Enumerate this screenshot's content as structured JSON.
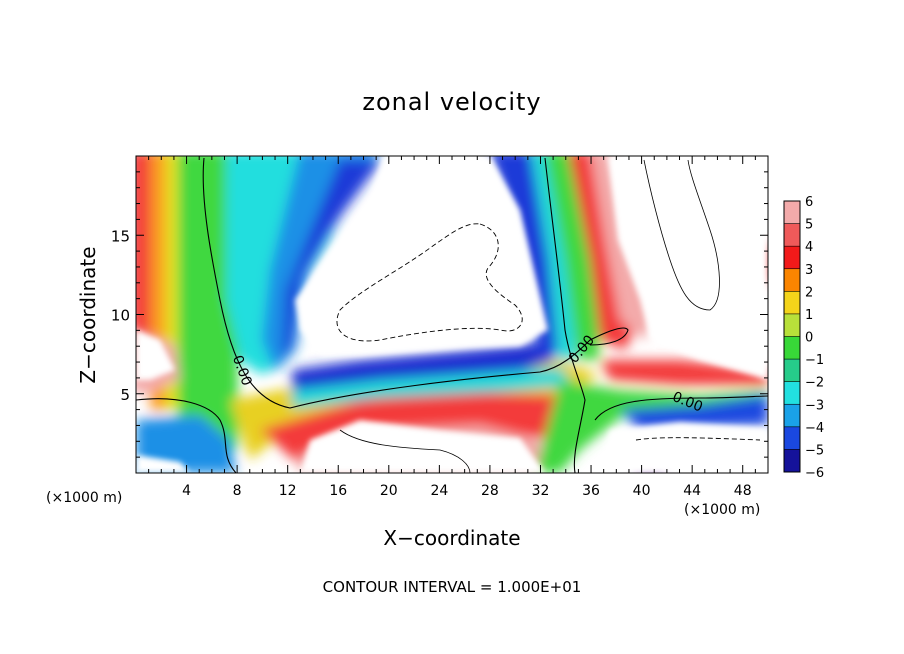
{
  "chart_data": {
    "type": "heatmap",
    "title": "zonal velocity",
    "xlabel": "X−coordinate",
    "ylabel": "Z−coordinate",
    "x_unit": "(×1000 m)",
    "xlim": [
      0,
      50
    ],
    "ylim": [
      0,
      20
    ],
    "x_ticks": [
      4,
      8,
      12,
      16,
      20,
      24,
      28,
      32,
      36,
      40,
      44,
      48
    ],
    "y_ticks": [
      5,
      10,
      15
    ],
    "colorbar": {
      "levels": [
        "6",
        "5",
        "4",
        "3",
        "2",
        "1",
        "0",
        "−1",
        "−2",
        "−3",
        "−4",
        "−5",
        "−6"
      ],
      "colors": [
        "#f3aaaa",
        "#ef5a5a",
        "#f21a1a",
        "#fb8500",
        "#f4d41a",
        "#b8e03a",
        "#38d838",
        "#26cc8a",
        "#22e0e0",
        "#1aa2e8",
        "#1a48e0",
        "#15129a",
        "#6a16a2"
      ]
    },
    "contour_label": "0.00",
    "contour_interval": "CONTOUR INTERVAL = 1.000E+01"
  },
  "colors": {
    "background": "#ffffff",
    "saturated_positive": "#ffffff",
    "saturated_negative": "#ffffff"
  }
}
